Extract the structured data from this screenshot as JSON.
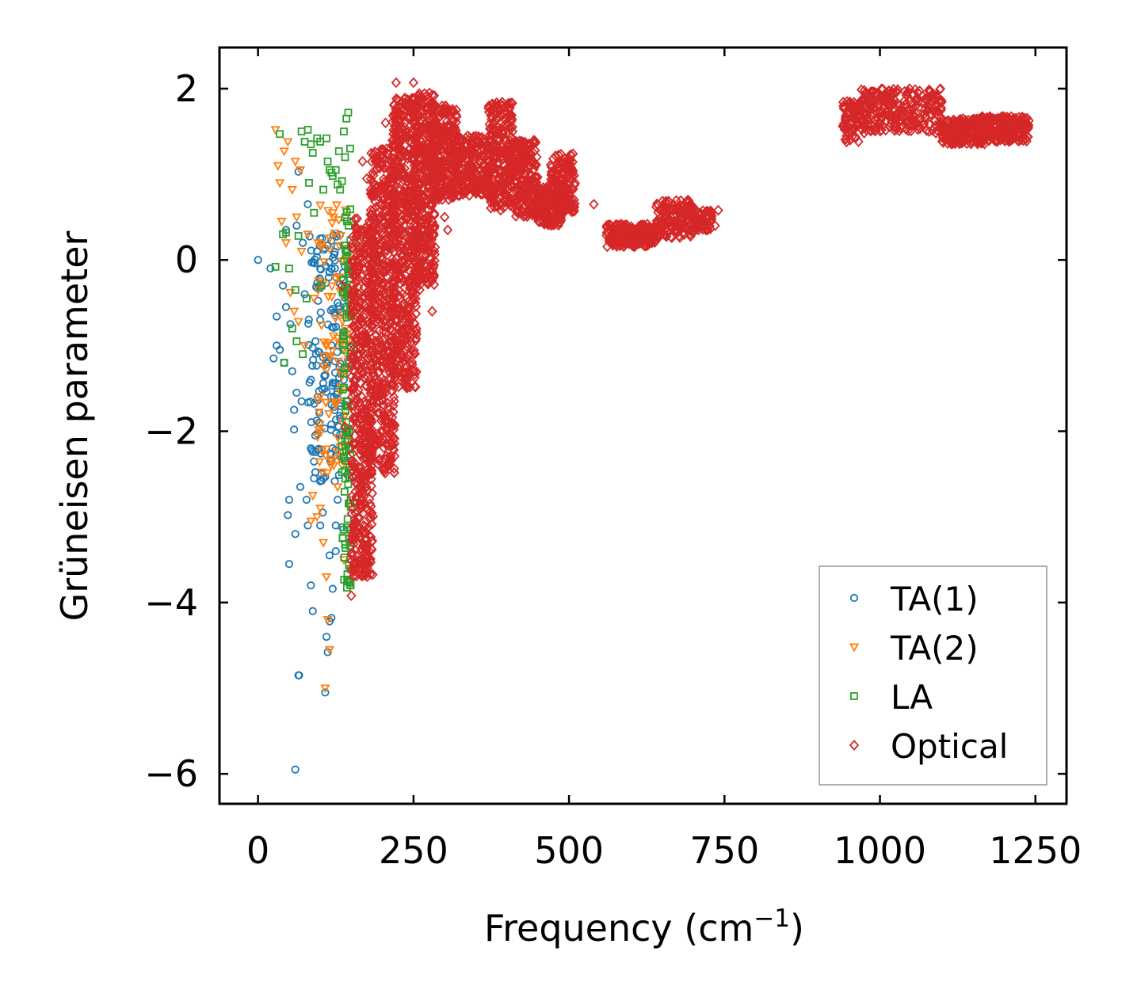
{
  "chart_data": {
    "type": "scatter",
    "xlabel": "Frequency (cm",
    "xlabel_sup": "−1",
    "xlabel_close": ")",
    "ylabel": "Grüneisen parameter",
    "xlim": [
      -62,
      1300
    ],
    "ylim": [
      -6.35,
      2.48
    ],
    "xticks": [
      0,
      250,
      500,
      750,
      1000,
      1250
    ],
    "xtick_labels": [
      "0",
      "250",
      "500",
      "750",
      "1000",
      "1250"
    ],
    "yticks": [
      -6,
      -4,
      -2,
      0,
      2
    ],
    "ytick_labels": [
      "−6",
      "−4",
      "−2",
      "0",
      "2"
    ],
    "legend_position": "lower-right",
    "series": [
      {
        "name": "TA(1)",
        "marker": "circle",
        "color": "#1f77b4",
        "points": [
          [
            0,
            0
          ],
          [
            20,
            -0.1
          ],
          [
            25,
            -1.15
          ],
          [
            30,
            -0.66
          ],
          [
            30,
            -1.0
          ],
          [
            35,
            -1.05
          ],
          [
            40,
            -0.3
          ],
          [
            42,
            -1.2
          ],
          [
            45,
            0.35
          ],
          [
            45,
            -0.55
          ],
          [
            48,
            -2.98
          ],
          [
            50,
            -3.55
          ],
          [
            50,
            -2.8
          ],
          [
            52,
            -0.75
          ],
          [
            55,
            -1.3
          ],
          [
            58,
            -1.75
          ],
          [
            58,
            -1.98
          ],
          [
            60,
            -5.95
          ],
          [
            60,
            -3.2
          ],
          [
            62,
            0.4
          ],
          [
            62,
            -1.55
          ],
          [
            65,
            1.03
          ],
          [
            65,
            -4.85
          ],
          [
            66,
            -4.85
          ],
          [
            68,
            -2.65
          ],
          [
            70,
            -1.65
          ],
          [
            72,
            0.2
          ],
          [
            75,
            -0.4
          ],
          [
            78,
            -2.8
          ],
          [
            80,
            -3.1
          ],
          [
            80,
            0.65
          ],
          [
            85,
            -2.2
          ],
          [
            85,
            -3.8
          ],
          [
            85,
            -1.4
          ],
          [
            88,
            -4.1
          ],
          [
            90,
            -2.55
          ],
          [
            92,
            -2.05
          ],
          [
            95,
            0.1
          ],
          [
            98,
            -1.9
          ],
          [
            100,
            -3.1
          ],
          [
            100,
            0.25
          ],
          [
            100,
            -0.7
          ],
          [
            102,
            -2.5
          ],
          [
            104,
            -2.95
          ],
          [
            105,
            -2.55
          ],
          [
            108,
            -5.05
          ],
          [
            110,
            -4.4
          ],
          [
            110,
            -1.2
          ],
          [
            112,
            -4.58
          ],
          [
            115,
            -4.22
          ],
          [
            115,
            -3.45
          ],
          [
            118,
            -4.18
          ],
          [
            118,
            -0.1
          ],
          [
            120,
            -3.84
          ],
          [
            120,
            -2.2
          ],
          [
            122,
            -1.6
          ],
          [
            125,
            -3.4
          ],
          [
            125,
            -3.1
          ],
          [
            128,
            -2.8
          ],
          [
            128,
            -0.5
          ],
          [
            130,
            -1.0
          ],
          [
            132,
            -1.85
          ],
          [
            135,
            -3.12
          ],
          [
            135,
            -2.3
          ],
          [
            138,
            -1.4
          ],
          [
            140,
            -0.3
          ]
        ],
        "clusters": [
          [
            80,
            145,
            -2.6,
            0.3,
            150
          ]
        ]
      },
      {
        "name": "TA(2)",
        "marker": "triangle-down",
        "color": "#ff7f0e",
        "points": [
          [
            28,
            1.52
          ],
          [
            32,
            1.1
          ],
          [
            35,
            0.9
          ],
          [
            38,
            0.45
          ],
          [
            42,
            1.27
          ],
          [
            45,
            0.2
          ],
          [
            48,
            1.38
          ],
          [
            52,
            -0.38
          ],
          [
            55,
            0.82
          ],
          [
            58,
            -0.6
          ],
          [
            60,
            1.15
          ],
          [
            62,
            0.5
          ],
          [
            65,
            -0.72
          ],
          [
            68,
            1.05
          ],
          [
            70,
            0.1
          ],
          [
            75,
            -1.0
          ],
          [
            80,
            0.3
          ],
          [
            85,
            -3.05
          ],
          [
            88,
            -2.75
          ],
          [
            90,
            -0.45
          ],
          [
            95,
            -3.0
          ],
          [
            100,
            -2.9
          ],
          [
            105,
            -3.3
          ],
          [
            108,
            -5.0
          ],
          [
            110,
            -3.7
          ],
          [
            112,
            -4.2
          ],
          [
            115,
            -4.55
          ],
          [
            118,
            -2.35
          ],
          [
            120,
            0.55
          ],
          [
            125,
            -1.7
          ],
          [
            128,
            -2.65
          ],
          [
            130,
            -0.2
          ],
          [
            132,
            -1.3
          ],
          [
            135,
            -2.4
          ],
          [
            138,
            -3.5
          ],
          [
            140,
            -0.8
          ]
        ],
        "clusters": [
          [
            95,
            145,
            -2.5,
            0.7,
            90
          ]
        ]
      },
      {
        "name": "LA",
        "marker": "square",
        "color": "#2ca02c",
        "points": [
          [
            28,
            -0.08
          ],
          [
            35,
            1.47
          ],
          [
            40,
            0.3
          ],
          [
            42,
            -1.2
          ],
          [
            45,
            0.32
          ],
          [
            50,
            -0.1
          ],
          [
            55,
            -0.8
          ],
          [
            60,
            -0.35
          ],
          [
            62,
            -0.95
          ],
          [
            65,
            0.28
          ],
          [
            70,
            1.5
          ],
          [
            72,
            -1.1
          ],
          [
            75,
            1.38
          ],
          [
            78,
            -0.45
          ],
          [
            80,
            1.52
          ],
          [
            82,
            0.9
          ],
          [
            85,
            1.35
          ],
          [
            88,
            1.25
          ],
          [
            90,
            0.55
          ],
          [
            95,
            1.42
          ],
          [
            100,
            1.38
          ],
          [
            102,
            -0.3
          ],
          [
            105,
            0.82
          ],
          [
            110,
            1.42
          ],
          [
            112,
            1.15
          ],
          [
            115,
            1.05
          ],
          [
            118,
            1.02
          ],
          [
            120,
            0.98
          ],
          [
            125,
            1.05
          ],
          [
            128,
            0.88
          ],
          [
            130,
            1.27
          ],
          [
            132,
            0.82
          ],
          [
            135,
            0.92
          ],
          [
            138,
            1.5
          ],
          [
            140,
            1.2
          ],
          [
            142,
            1.65
          ],
          [
            145,
            1.72
          ],
          [
            148,
            1.3
          ]
        ],
        "clusters": [
          [
            135,
            150,
            -3.85,
            0.6,
            110
          ]
        ]
      },
      {
        "name": "Optical",
        "marker": "diamond",
        "color": "#d62728",
        "points": [
          [
            222,
            2.07
          ],
          [
            250,
            2.07
          ],
          [
            390,
            1.82
          ],
          [
            405,
            1.78
          ],
          [
            135,
            -0.3
          ],
          [
            140,
            -1.95
          ],
          [
            150,
            -3.92
          ],
          [
            168,
            1.15
          ],
          [
            175,
            0.95
          ],
          [
            180,
            -3.5
          ],
          [
            200,
            -1.5
          ],
          [
            205,
            1.6
          ],
          [
            240,
            -1.02
          ],
          [
            260,
            -0.35
          ],
          [
            280,
            -0.6
          ],
          [
            300,
            0.5
          ],
          [
            305,
            0.35
          ],
          [
            335,
            0.8
          ],
          [
            390,
            0.58
          ],
          [
            420,
            0.72
          ],
          [
            460,
            0.68
          ],
          [
            500,
            0.7
          ],
          [
            540,
            0.65
          ],
          [
            695,
            0.3
          ],
          [
            720,
            0.35
          ],
          [
            735,
            0.4
          ],
          [
            740,
            0.58
          ],
          [
            1090,
            1.48
          ]
        ],
        "clusters": [
          [
            150,
            185,
            -3.7,
            0.5,
            520
          ],
          [
            180,
            220,
            -2.5,
            1.3,
            520
          ],
          [
            215,
            255,
            -1.5,
            1.9,
            520
          ],
          [
            250,
            285,
            -0.3,
            1.95,
            380
          ],
          [
            280,
            320,
            0.7,
            1.8,
            260
          ],
          [
            320,
            370,
            0.75,
            1.45,
            200
          ],
          [
            370,
            410,
            0.6,
            1.85,
            260
          ],
          [
            410,
            450,
            0.5,
            1.4,
            200
          ],
          [
            450,
            490,
            0.4,
            0.85,
            160
          ],
          [
            470,
            510,
            0.55,
            1.25,
            160
          ],
          [
            560,
            640,
            0.15,
            0.42,
            200
          ],
          [
            640,
            700,
            0.25,
            0.7,
            160
          ],
          [
            700,
            730,
            0.35,
            0.58,
            60
          ],
          [
            940,
            980,
            1.35,
            1.85,
            80
          ],
          [
            970,
            1100,
            1.5,
            2.0,
            260
          ],
          [
            1100,
            1170,
            1.35,
            1.65,
            200
          ],
          [
            1160,
            1240,
            1.38,
            1.68,
            220
          ]
        ]
      }
    ]
  }
}
